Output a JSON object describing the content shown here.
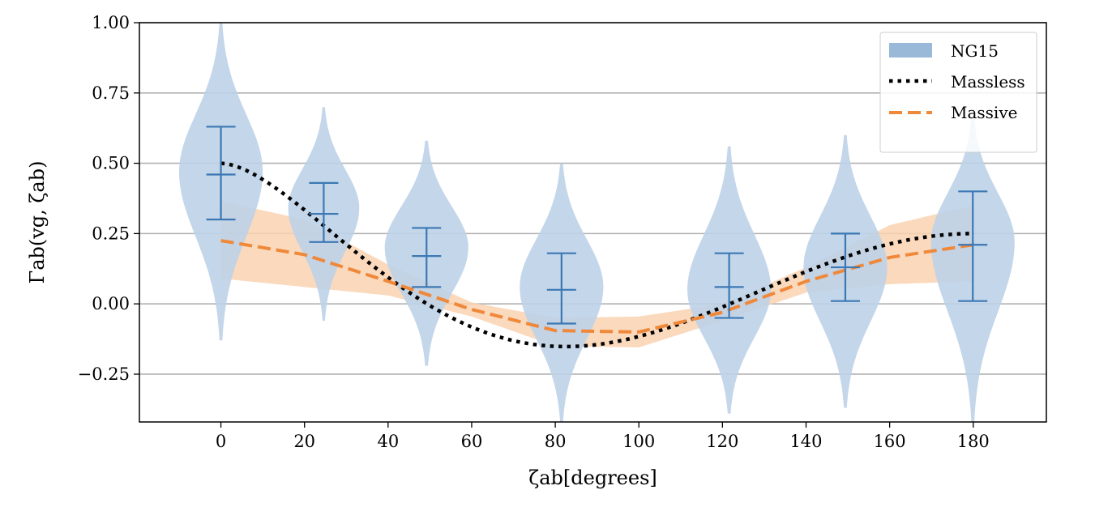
{
  "chart_data": {
    "type": "violin",
    "xlabel": "ζab[degrees]",
    "ylabel": "Γab(vg, ζab)",
    "xlim": [
      -19.5,
      197.5
    ],
    "ylim": [
      -0.42,
      1.0
    ],
    "x_ticks": [
      0,
      20,
      40,
      60,
      80,
      100,
      120,
      140,
      160,
      180
    ],
    "y_ticks": [
      -0.25,
      0.0,
      0.25,
      0.5,
      0.75,
      1.0
    ],
    "y_tick_labels": [
      "−0.25",
      "0.00",
      "0.25",
      "0.50",
      "0.75",
      "1.00"
    ],
    "horizontal_grid": true,
    "legend_position": "top-right",
    "colors": {
      "violin": "#bcd2e8",
      "errorbar": "#3c78b4",
      "massless": "#000000",
      "massive": "#f0883a",
      "massive_band": "#f9d2b0",
      "grid": "#b0b0b0",
      "legend_patch": "#9ab8d8"
    },
    "series": [
      {
        "name": "NG15",
        "kind": "violin",
        "x": [
          0,
          24.6,
          49.2,
          81.5,
          121.6,
          149.4,
          179.9
        ],
        "median": [
          0.46,
          0.32,
          0.17,
          0.05,
          0.06,
          0.13,
          0.21
        ],
        "lower": [
          0.3,
          0.22,
          0.06,
          -0.07,
          -0.05,
          0.01,
          0.01
        ],
        "upper": [
          0.63,
          0.43,
          0.27,
          0.18,
          0.18,
          0.25,
          0.4
        ],
        "peak": [
          0.47,
          0.34,
          0.2,
          0.06,
          0.05,
          0.13,
          0.22
        ],
        "min": [
          -0.13,
          -0.06,
          -0.22,
          -0.42,
          -0.39,
          -0.37,
          -0.42
        ],
        "max": [
          1.0,
          0.7,
          0.58,
          0.5,
          0.56,
          0.6,
          0.67
        ],
        "half_width_deg": [
          10,
          8.5,
          10,
          10,
          10,
          10,
          10
        ]
      },
      {
        "name": "Massless",
        "kind": "line",
        "style": "dotted",
        "function": "hellings-downs"
      },
      {
        "name": "Massive",
        "kind": "line",
        "style": "dashed",
        "x": [
          0,
          20,
          40,
          60,
          80,
          100,
          120,
          140,
          160,
          180
        ],
        "y": [
          0.225,
          0.175,
          0.08,
          -0.02,
          -0.095,
          -0.1,
          -0.03,
          0.08,
          0.165,
          0.21
        ],
        "band_lower": [
          0.09,
          0.06,
          0.03,
          -0.045,
          -0.15,
          -0.155,
          -0.06,
          0.04,
          0.07,
          0.08
        ],
        "band_upper": [
          0.365,
          0.3,
          0.14,
          0.005,
          -0.05,
          -0.045,
          0.0,
          0.13,
          0.28,
          0.35
        ]
      }
    ]
  }
}
